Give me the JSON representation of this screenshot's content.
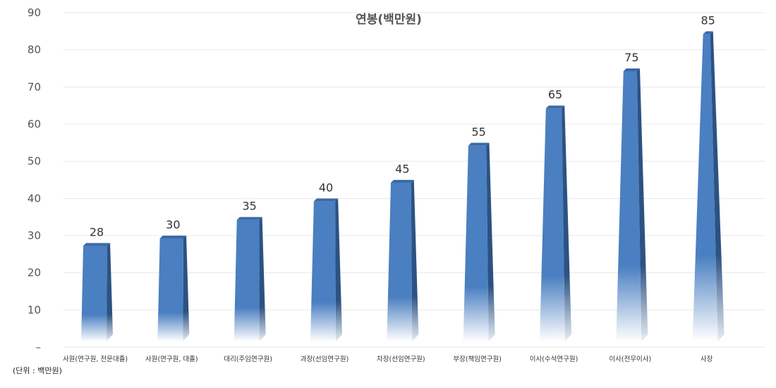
{
  "chart_data": {
    "type": "bar",
    "title": "연봉(백만원)",
    "categories": [
      "사원(연구원, 전문대졸)",
      "사원(연구원, 대졸)",
      "대리(주임연구원)",
      "과장(선임연구원)",
      "차장(선임연구원)",
      "부장(책임연구원)",
      "이사(수석연구원)",
      "이사(전무이사)",
      "사장"
    ],
    "values": [
      28,
      30,
      35,
      40,
      45,
      55,
      65,
      75,
      85
    ],
    "y_ticks": [
      "–",
      "10",
      "20",
      "30",
      "40",
      "50",
      "60",
      "70",
      "80",
      "90"
    ],
    "ylim": [
      0,
      90
    ],
    "grid": true,
    "legend": "none",
    "note": "(단위 : 백만원)"
  },
  "colors": {
    "bar_front": "#4a7fc1",
    "bar_side": "#2c5282",
    "bar_top": "#3b6aa6",
    "grid": "#e8e8e8"
  }
}
